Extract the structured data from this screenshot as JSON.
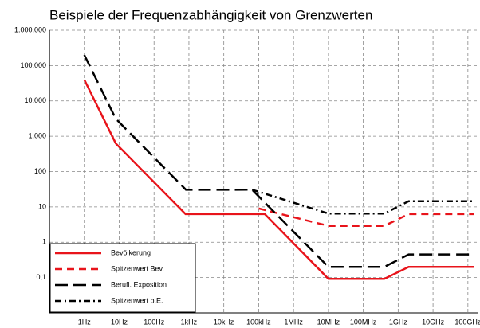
{
  "chart_data": {
    "type": "line",
    "title": "Beispiele der Frequenzabhängigkeit von Grenzwerten",
    "xscale": "log",
    "yscale": "log",
    "grid": true,
    "legend": "lower left",
    "xlim": [
      0.1,
      200000000000
    ],
    "ylim": [
      0.01,
      1000000
    ],
    "xticks": [
      {
        "value": 1,
        "label": "1Hz"
      },
      {
        "value": 10,
        "label": "10Hz"
      },
      {
        "value": 100,
        "label": "100Hz"
      },
      {
        "value": 1000,
        "label": "1kHz"
      },
      {
        "value": 10000,
        "label": "10kHz"
      },
      {
        "value": 100000,
        "label": "100kHz"
      },
      {
        "value": 1000000,
        "label": "1MHz"
      },
      {
        "value": 10000000,
        "label": "10MHz"
      },
      {
        "value": 100000000,
        "label": "100MHz"
      },
      {
        "value": 1000000000,
        "label": "1GHz"
      },
      {
        "value": 10000000000,
        "label": "10GHz"
      },
      {
        "value": 100000000000,
        "label": "100GHz"
      }
    ],
    "yticks": [
      {
        "value": 0.1,
        "label": "0,1"
      },
      1,
      10,
      100,
      {
        "value": 1000,
        "label": "1.000"
      },
      {
        "value": 10000,
        "label": "10.000"
      },
      {
        "value": 100000,
        "label": "100.000"
      },
      {
        "value": 1000000,
        "label": "1.000.000"
      }
    ],
    "series": [
      {
        "name": "Bevölkerung",
        "color": "#e8141b",
        "style": "solid",
        "x": [
          1,
          8,
          800,
          150000,
          10000000,
          400000000,
          2000000000,
          150000000000
        ],
        "values": [
          40000,
          625,
          6.25,
          6.25,
          0.092,
          0.092,
          0.2,
          0.2
        ]
      },
      {
        "name": "Spitzenwert Bev.",
        "color": "#e8141b",
        "style": "dashed",
        "x": [
          100000,
          10000000,
          400000000,
          2000000000,
          150000000000
        ],
        "values": [
          9,
          2.9,
          2.9,
          6.25,
          6.25
        ]
      },
      {
        "name": "Berufl. Exposition",
        "color": "#000000",
        "style": "longdash",
        "x": [
          1,
          8,
          820,
          65000,
          10000000,
          400000000,
          2000000000,
          150000000000
        ],
        "values": [
          200000,
          3125,
          30.5,
          30.7,
          0.2,
          0.2,
          0.45,
          0.45
        ]
      },
      {
        "name": "Spitzenwert b.E.",
        "color": "#000000",
        "style": "dashdot",
        "x": [
          65000,
          10000000,
          400000000,
          2000000000,
          150000000000
        ],
        "values": [
          30.7,
          6.5,
          6.5,
          14.5,
          14.5
        ]
      }
    ]
  }
}
